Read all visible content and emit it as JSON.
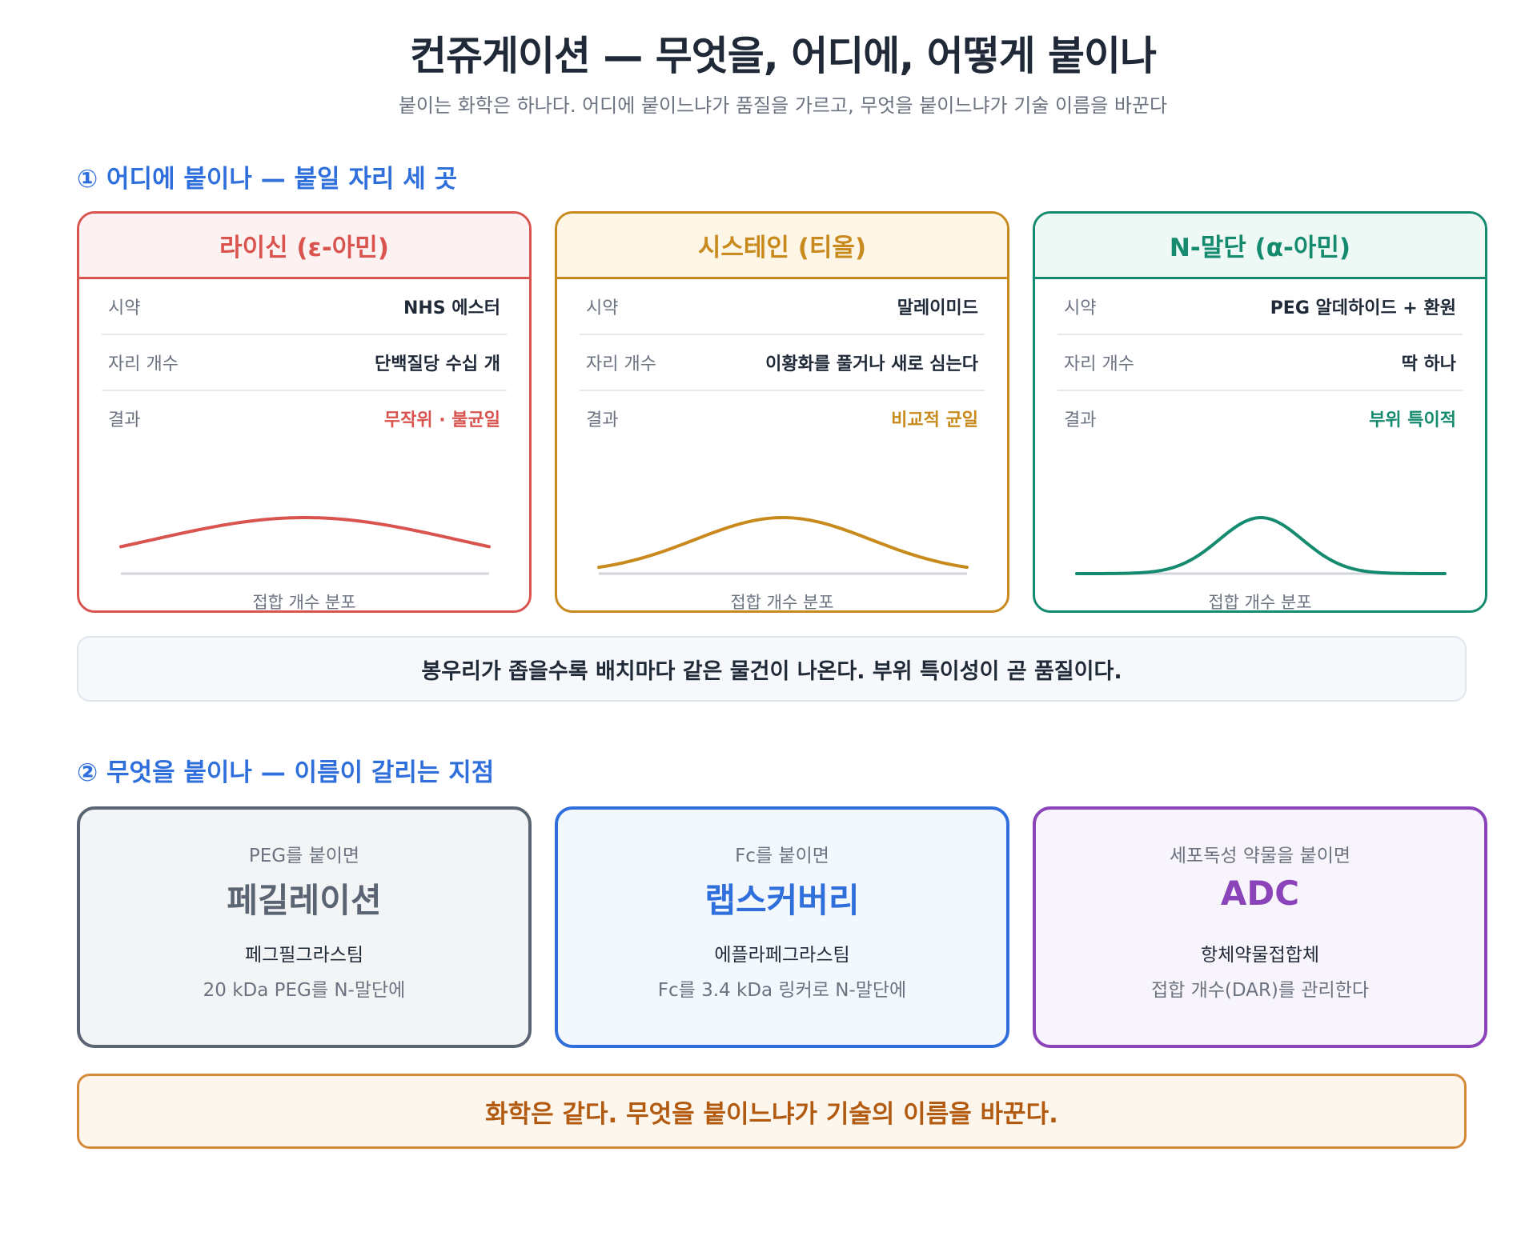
{
  "header": {
    "title": "컨쥬게이션 — 무엇을, 어디에, 어떻게 붙이나",
    "subtitle": "붙이는 화학은 하나다. 어디에 붙이느냐가 품질을 가르고, 무엇을 붙이느냐가 기술 이름을 바꾼다"
  },
  "section1": {
    "title": "① 어디에 붙이나 — 붙일 자리 세 곳",
    "cards": [
      {
        "title": "라이신 (ε-아민)",
        "color": "#d9534f",
        "head_bg": "#fdf2f2",
        "rows": [
          {
            "k": "시약",
            "v": "NHS 에스터"
          },
          {
            "k": "자리 개수",
            "v": "단백질당 수십 개"
          },
          {
            "k": "결과",
            "v": "무작위 · 불균일"
          }
        ],
        "distribution": "broad",
        "caption": "접합 개수 분포"
      },
      {
        "title": "시스테인 (티올)",
        "color": "#c98a1d",
        "head_bg": "#fdf6e7",
        "rows": [
          {
            "k": "시약",
            "v": "말레이미드"
          },
          {
            "k": "자리 개수",
            "v": "이황화를 풀거나 새로 심는다"
          },
          {
            "k": "결과",
            "v": "비교적 균일"
          }
        ],
        "distribution": "medium",
        "caption": "접합 개수 분포"
      },
      {
        "title": "N-말단 (α-아민)",
        "color": "#148a6e",
        "head_bg": "#eef8f4",
        "rows": [
          {
            "k": "시약",
            "v": "PEG 알데하이드 + 환원"
          },
          {
            "k": "자리 개수",
            "v": "딱 하나"
          },
          {
            "k": "결과",
            "v": "부위 특이적"
          }
        ],
        "distribution": "narrow",
        "caption": "접합 개수 분포"
      }
    ],
    "note": "봉우리가 좁을수록 배치마다 같은 물건이 나온다. 부위 특이성이 곧 품질이다."
  },
  "section2": {
    "title": "② 무엇을 붙이나 — 이름이 갈리는 지점",
    "cards": [
      {
        "pre": "PEG를 붙이면",
        "name": "페길레이션",
        "example": "페그필그라스팀",
        "desc": "20 kDa PEG를 N-말단에",
        "color": "#5b6472",
        "bg": "#f3f4f6"
      },
      {
        "pre": "Fc를 붙이면",
        "name": "랩스커버리",
        "example": "에플라페그라스팀",
        "desc": "Fc를 3.4 kDa 링커로 N-말단에",
        "color": "#2f6fdc",
        "bg": "#f3f7fe"
      },
      {
        "pre": "세포독성 약물을 붙이면",
        "name": "ADC",
        "example": "항체약물접합체",
        "desc": "접합 개수(DAR)를 관리한다",
        "color": "#8a43b8",
        "bg": "#f8f4fb"
      }
    ],
    "note": "화학은 같다. 무엇을 붙이느냐가 기술의 이름을 바꾼다."
  }
}
